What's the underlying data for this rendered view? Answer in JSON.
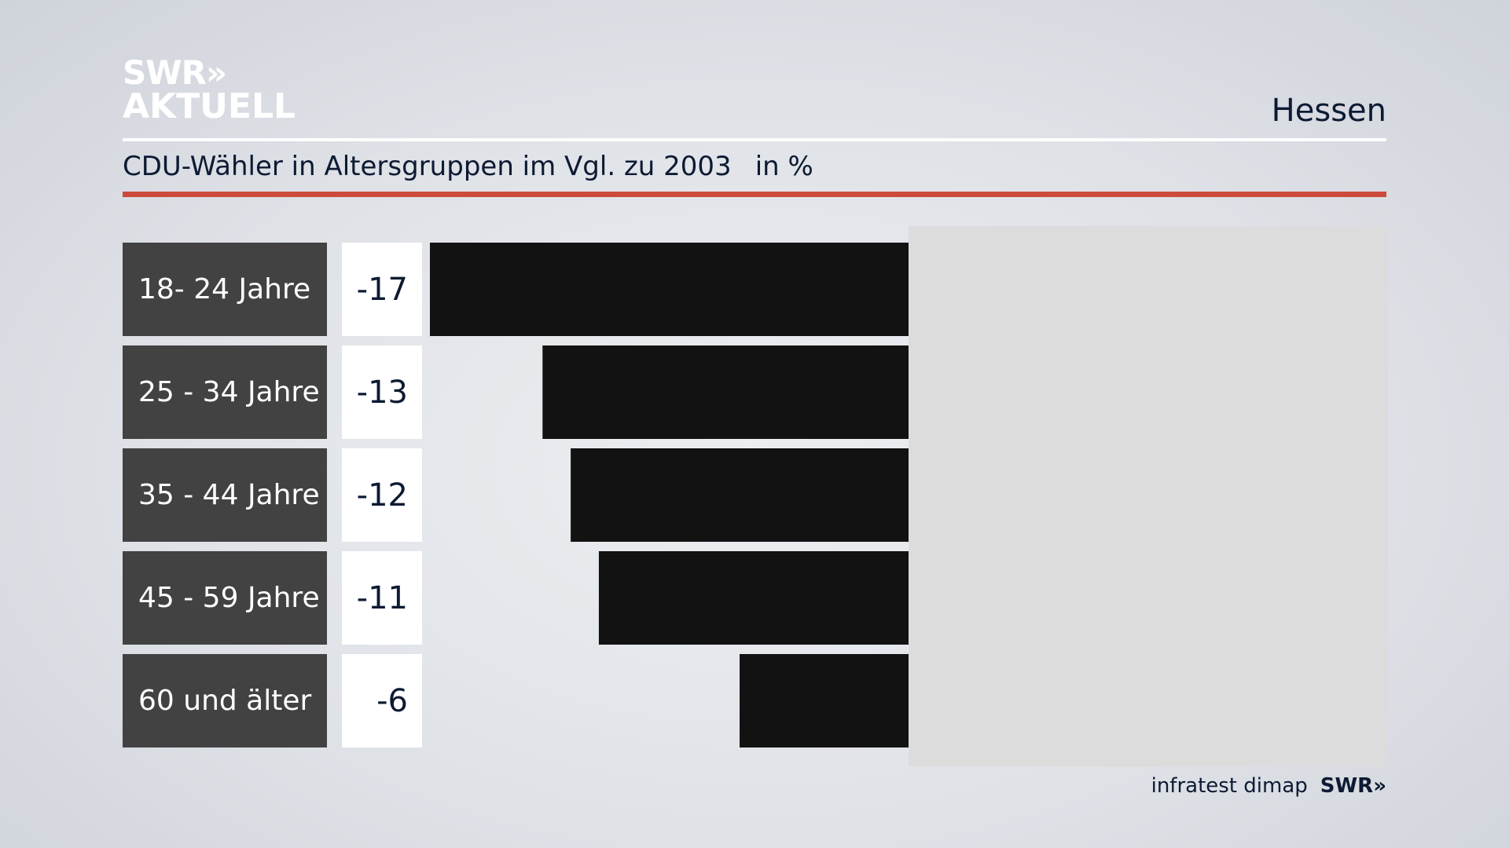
{
  "brand": {
    "logo_line1": "SWR»",
    "logo_line2": "AKTUELL"
  },
  "region": "Hessen",
  "header": {
    "title": "CDU-Wähler in Altersgruppen im Vgl. zu 2003",
    "unit": "in %"
  },
  "chart_data": {
    "type": "bar",
    "orientation": "horizontal",
    "categories": [
      "18- 24 Jahre",
      "25 - 34 Jahre",
      "35 - 44 Jahre",
      "45 - 59 Jahre",
      "60 und älter"
    ],
    "values": [
      -17,
      -13,
      -12,
      -11,
      -6
    ],
    "value_labels": [
      "-17",
      "-13",
      "-12",
      "-11",
      "-6"
    ],
    "title": "CDU-Wähler in Altersgruppen im Vgl. zu 2003",
    "unit": "in %",
    "xlim": [
      -17,
      17
    ],
    "bar_color": "#121212",
    "label_box_color": "#424242",
    "accent_color": "#cc4b3c"
  },
  "source": {
    "institute": "infratest dimap",
    "broadcaster": "SWR»"
  }
}
